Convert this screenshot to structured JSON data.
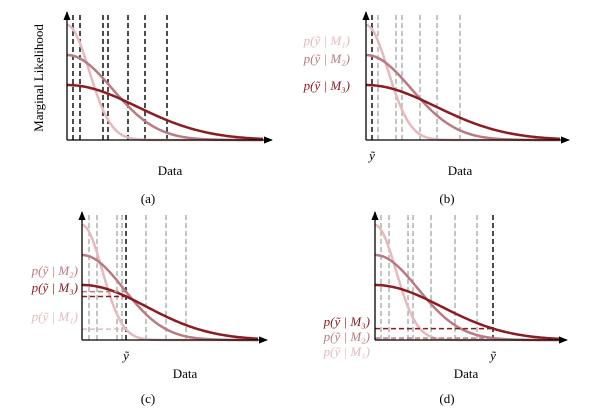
{
  "panels": [
    {
      "caption": "(a)",
      "x_label": "Data",
      "y_label": "Marginal Likelihood"
    },
    {
      "caption": "(b)",
      "x_label": "Data",
      "marker": "ỹ",
      "legend": [
        "p(ỹ | M₁)",
        "p(ỹ | M₂)",
        "p(ỹ | M₃)"
      ]
    },
    {
      "caption": "(c)",
      "x_label": "Data",
      "marker": "ỹ",
      "legend": [
        "p(ỹ | M₁)",
        "p(ỹ | M₂)",
        "p(ỹ | M₃)"
      ]
    },
    {
      "caption": "(d)",
      "x_label": "Data",
      "marker": "ỹ",
      "legend": [
        "p(ỹ | M₁)",
        "p(ỹ | M₂)",
        "p(ỹ | M₃)"
      ]
    }
  ]
}
